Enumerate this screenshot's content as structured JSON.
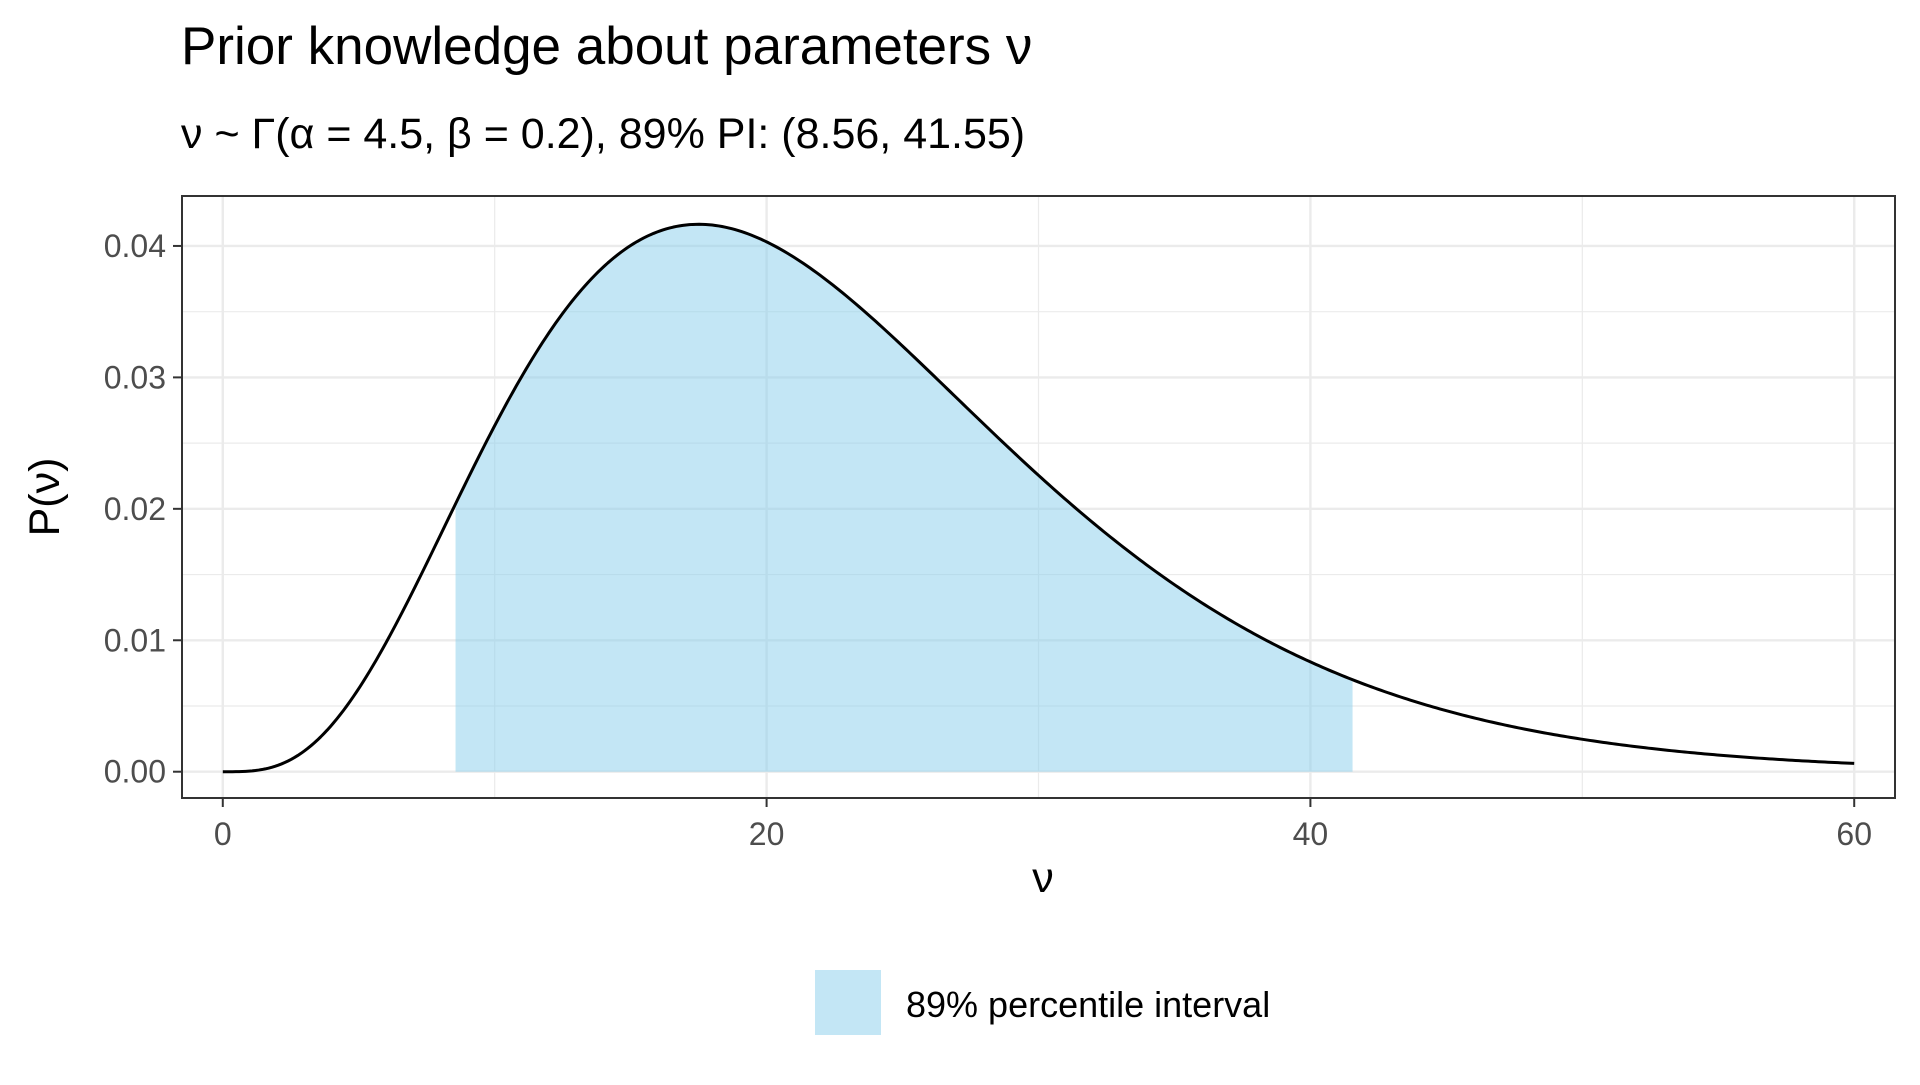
{
  "chart_data": {
    "type": "area",
    "title": "Prior knowledge about parameters ν",
    "subtitle": "ν ~ Γ(α = 4.5, β = 0.2), 89% PI: (8.56, 41.55)",
    "xlabel": "ν",
    "ylabel": "P(ν)",
    "xlim": [
      -1.5,
      61.5
    ],
    "ylim": [
      -0.002,
      0.0438
    ],
    "x_ticks": [
      0,
      20,
      40,
      60
    ],
    "x_tick_labels": [
      "0",
      "20",
      "40",
      "60"
    ],
    "y_ticks": [
      0,
      0.01,
      0.02,
      0.03,
      0.04
    ],
    "y_tick_labels": [
      "0.00",
      "0.01",
      "0.02",
      "0.03",
      "0.04"
    ],
    "grid": true,
    "distribution": {
      "family": "gamma",
      "shape": 4.5,
      "rate": 0.2
    },
    "x_range": [
      0,
      60
    ],
    "interval": {
      "lower": 8.56,
      "upper": 41.55
    },
    "colors": {
      "curve": "#000000",
      "fill": "#87ceeb",
      "grid": "#ebebeb",
      "panel_border": "#333333"
    },
    "legend": {
      "position": "bottom",
      "entries": [
        {
          "label": "89% percentile interval",
          "color": "#87ceeb"
        }
      ]
    }
  }
}
